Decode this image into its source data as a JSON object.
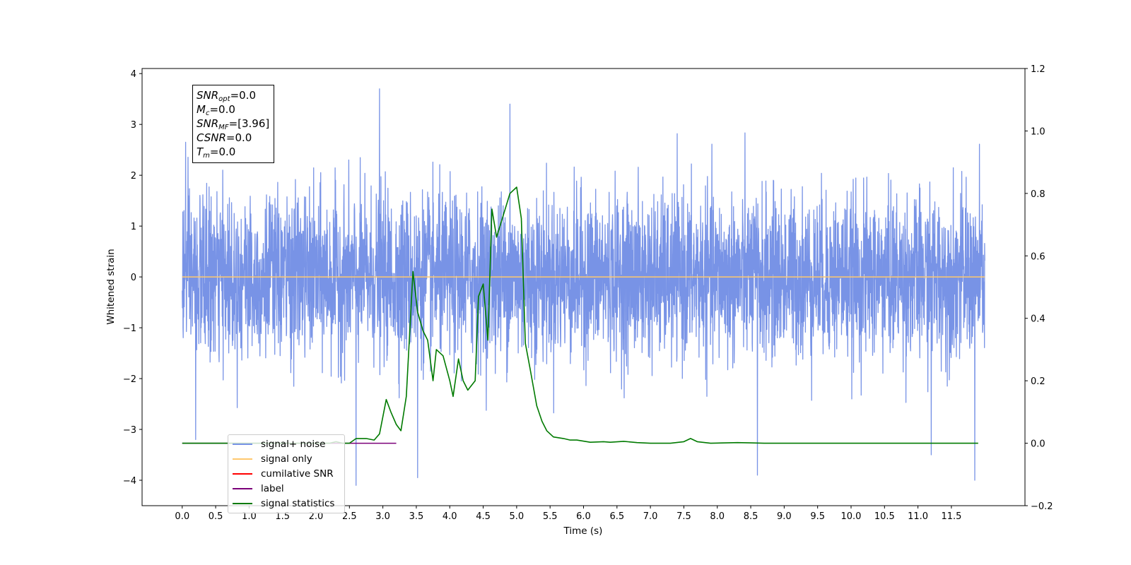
{
  "chart_data": {
    "type": "line",
    "xlabel": "Time (s)",
    "ylabel_left": "Whitened strain",
    "ylabel_right": "",
    "xlim": [
      -0.6,
      12.6
    ],
    "ylim_left": [
      -4.5,
      4.1
    ],
    "ylim_right": [
      -0.2,
      1.2
    ],
    "x_ticks": [
      "0.0",
      "0.5",
      "1.0",
      "1.5",
      "2.0",
      "2.5",
      "3.0",
      "3.5",
      "4.0",
      "4.5",
      "5.0",
      "5.5",
      "6.0",
      "6.5",
      "7.0",
      "7.5",
      "8.0",
      "8.5",
      "9.0",
      "9.5",
      "10.0",
      "10.5",
      "11.0",
      "11.5"
    ],
    "y_ticks_left": [
      "4",
      "3",
      "2",
      "1",
      "0",
      "−1",
      "−2",
      "−3",
      "−4"
    ],
    "y_ticks_right": [
      "1.2",
      "1.0",
      "0.8",
      "0.6",
      "0.4",
      "0.2",
      "0.0",
      "−0.2"
    ],
    "annotation": {
      "lines": [
        {
          "sym": "SNR",
          "sub": "opt",
          "value": "=0.0"
        },
        {
          "sym": "M",
          "sub": "c",
          "value": "=0.0"
        },
        {
          "sym": "SNR",
          "sub": "MF",
          "value": "=[3.96]"
        },
        {
          "sym": "CSNR",
          "sub": "",
          "value": "=0.0"
        },
        {
          "sym": "T",
          "sub": "m",
          "value": "=0.0"
        }
      ]
    },
    "legend": {
      "placement": "lower-left",
      "entries": [
        {
          "label": "signal+ noise",
          "color": "#7893e6"
        },
        {
          "label": "signal only",
          "color": "#ffc86e"
        },
        {
          "label": "cumilative SNR",
          "color": "#ff0000"
        },
        {
          "label": "label",
          "color": "#7b0079"
        },
        {
          "label": "signal statistics",
          "color": "#007a00"
        }
      ]
    },
    "series": [
      {
        "name": "signal+ noise",
        "axis": "left",
        "color": "#7893e6",
        "style": "gaussian noise band",
        "x_range": [
          0.0,
          12.0
        ],
        "typical_range": [
          -1.7,
          1.7
        ],
        "notable_extrema": [
          {
            "x": 2.95,
            "y": 3.7
          },
          {
            "x": 4.9,
            "y": 3.4
          },
          {
            "x": 0.05,
            "y": 2.65
          },
          {
            "x": 2.6,
            "y": -4.1
          },
          {
            "x": 3.52,
            "y": -3.95
          },
          {
            "x": 8.6,
            "y": -3.9
          },
          {
            "x": 11.85,
            "y": -4.0
          },
          {
            "x": 0.2,
            "y": -3.2
          },
          {
            "x": 11.2,
            "y": -3.5
          }
        ]
      },
      {
        "name": "signal only",
        "axis": "left",
        "color": "#ffc86e",
        "x": [
          0.0,
          12.0
        ],
        "y": [
          0.0,
          0.0
        ]
      },
      {
        "name": "label",
        "axis": "right",
        "color": "#7b0079",
        "x": [
          0.0,
          3.2
        ],
        "y": [
          0.0,
          0.0
        ]
      },
      {
        "name": "signal statistics",
        "axis": "right",
        "color": "#007a00",
        "x": [
          0.0,
          2.0,
          2.2,
          2.3,
          2.4,
          2.5,
          2.6,
          2.75,
          2.87,
          2.95,
          3.05,
          3.12,
          3.2,
          3.27,
          3.35,
          3.45,
          3.52,
          3.6,
          3.67,
          3.75,
          3.8,
          3.9,
          4.0,
          4.05,
          4.13,
          4.2,
          4.27,
          4.38,
          4.43,
          4.5,
          4.57,
          4.63,
          4.7,
          4.8,
          4.9,
          5.0,
          5.07,
          5.13,
          5.2,
          5.3,
          5.38,
          5.45,
          5.55,
          5.7,
          5.8,
          5.9,
          6.1,
          6.3,
          6.4,
          6.6,
          6.8,
          7.0,
          7.3,
          7.5,
          7.6,
          7.7,
          7.9,
          8.3,
          8.5,
          8.7,
          9.0,
          10.0,
          11.0,
          11.9
        ],
        "y": [
          0.0,
          0.0,
          0.0,
          0.005,
          0.0,
          0.0,
          0.015,
          0.015,
          0.01,
          0.03,
          0.14,
          0.1,
          0.06,
          0.04,
          0.15,
          0.55,
          0.42,
          0.36,
          0.33,
          0.2,
          0.3,
          0.28,
          0.2,
          0.15,
          0.27,
          0.2,
          0.17,
          0.2,
          0.47,
          0.51,
          0.33,
          0.75,
          0.66,
          0.73,
          0.8,
          0.82,
          0.72,
          0.32,
          0.24,
          0.12,
          0.07,
          0.04,
          0.02,
          0.015,
          0.01,
          0.01,
          0.003,
          0.005,
          0.003,
          0.006,
          0.002,
          0.0,
          0.0,
          0.005,
          0.015,
          0.005,
          0.0,
          0.002,
          0.001,
          0.0,
          0.0,
          0.0,
          0.0,
          0.0
        ]
      }
    ]
  }
}
